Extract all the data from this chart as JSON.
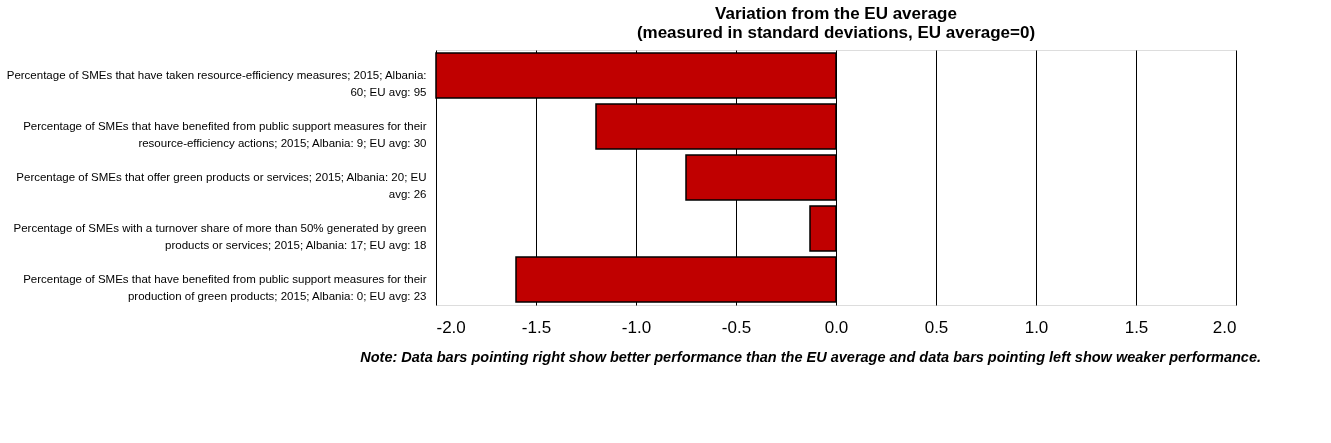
{
  "chart_data": {
    "type": "bar",
    "orientation": "horizontal",
    "title": [
      "Variation from the EU average",
      "(measured in standard deviations, EU average=0)"
    ],
    "categories": [
      "Percentage of SMEs that have taken resource-efficiency measures; 2015; Albania: 60; EU avg: 95",
      "Percentage of SMEs that have benefited from public support measures for their resource-efficiency actions; 2015; Albania: 9; EU avg: 30",
      "Percentage of SMEs that offer green products or services; 2015; Albania: 20; EU avg: 26",
      "Percentage of SMEs with a turnover share of more than 50% generated by green products or services; 2015; Albania: 17; EU avg: 18",
      "Percentage of SMEs that have benefited from public support measures for their production of green products; 2015; Albania: 0; EU avg: 23"
    ],
    "values": [
      -2.0,
      -1.2,
      -0.75,
      -0.13,
      -1.6
    ],
    "color": "#c00000",
    "xlim": [
      -2.0,
      2.0
    ],
    "xticks": [
      {
        "value": -2,
        "label": "-2.0"
      },
      {
        "value": -1.5,
        "label": "-1.5"
      },
      {
        "value": -1,
        "label": "-1.0"
      },
      {
        "value": -0.5,
        "label": "-0.5"
      },
      {
        "value": 0,
        "label": "0.0"
      },
      {
        "value": 0.5,
        "label": "0.5"
      },
      {
        "value": 1,
        "label": "1.0"
      },
      {
        "value": 1.5,
        "label": "1.5"
      },
      {
        "value": 2,
        "label": "2.0"
      }
    ],
    "grid": "x",
    "annotations": [
      "Note: Data bars pointing right show better performance than the EU average and data bars pointing left show weaker performance."
    ]
  }
}
